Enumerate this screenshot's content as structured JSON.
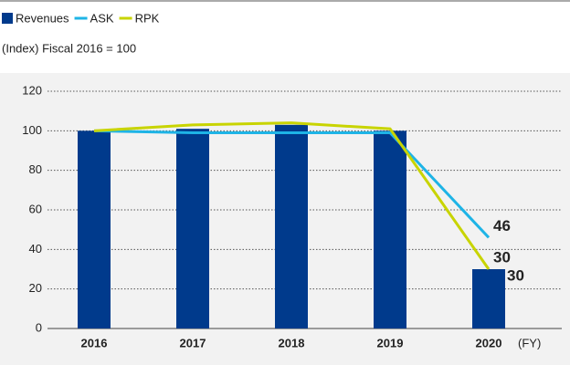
{
  "chart_data": {
    "type": "bar",
    "subtitle": "(Index) Fiscal 2016 = 100",
    "x_label": "(FY)",
    "categories": [
      "2016",
      "2017",
      "2018",
      "2019",
      "2020"
    ],
    "series": [
      {
        "name": "Revenues",
        "type": "bar",
        "color": "#003a8c",
        "values": [
          100,
          101,
          103,
          100,
          30
        ]
      },
      {
        "name": "ASK",
        "type": "line",
        "color": "#1eb4e6",
        "values": [
          100,
          99,
          99,
          99,
          46
        ]
      },
      {
        "name": "RPK",
        "type": "line",
        "color": "#c8d400",
        "values": [
          100,
          103,
          104,
          101,
          30
        ]
      }
    ],
    "ylim": [
      0,
      120
    ],
    "yticks": [
      0,
      20,
      40,
      60,
      80,
      100,
      120
    ],
    "grid": true,
    "legend": "top-left"
  }
}
